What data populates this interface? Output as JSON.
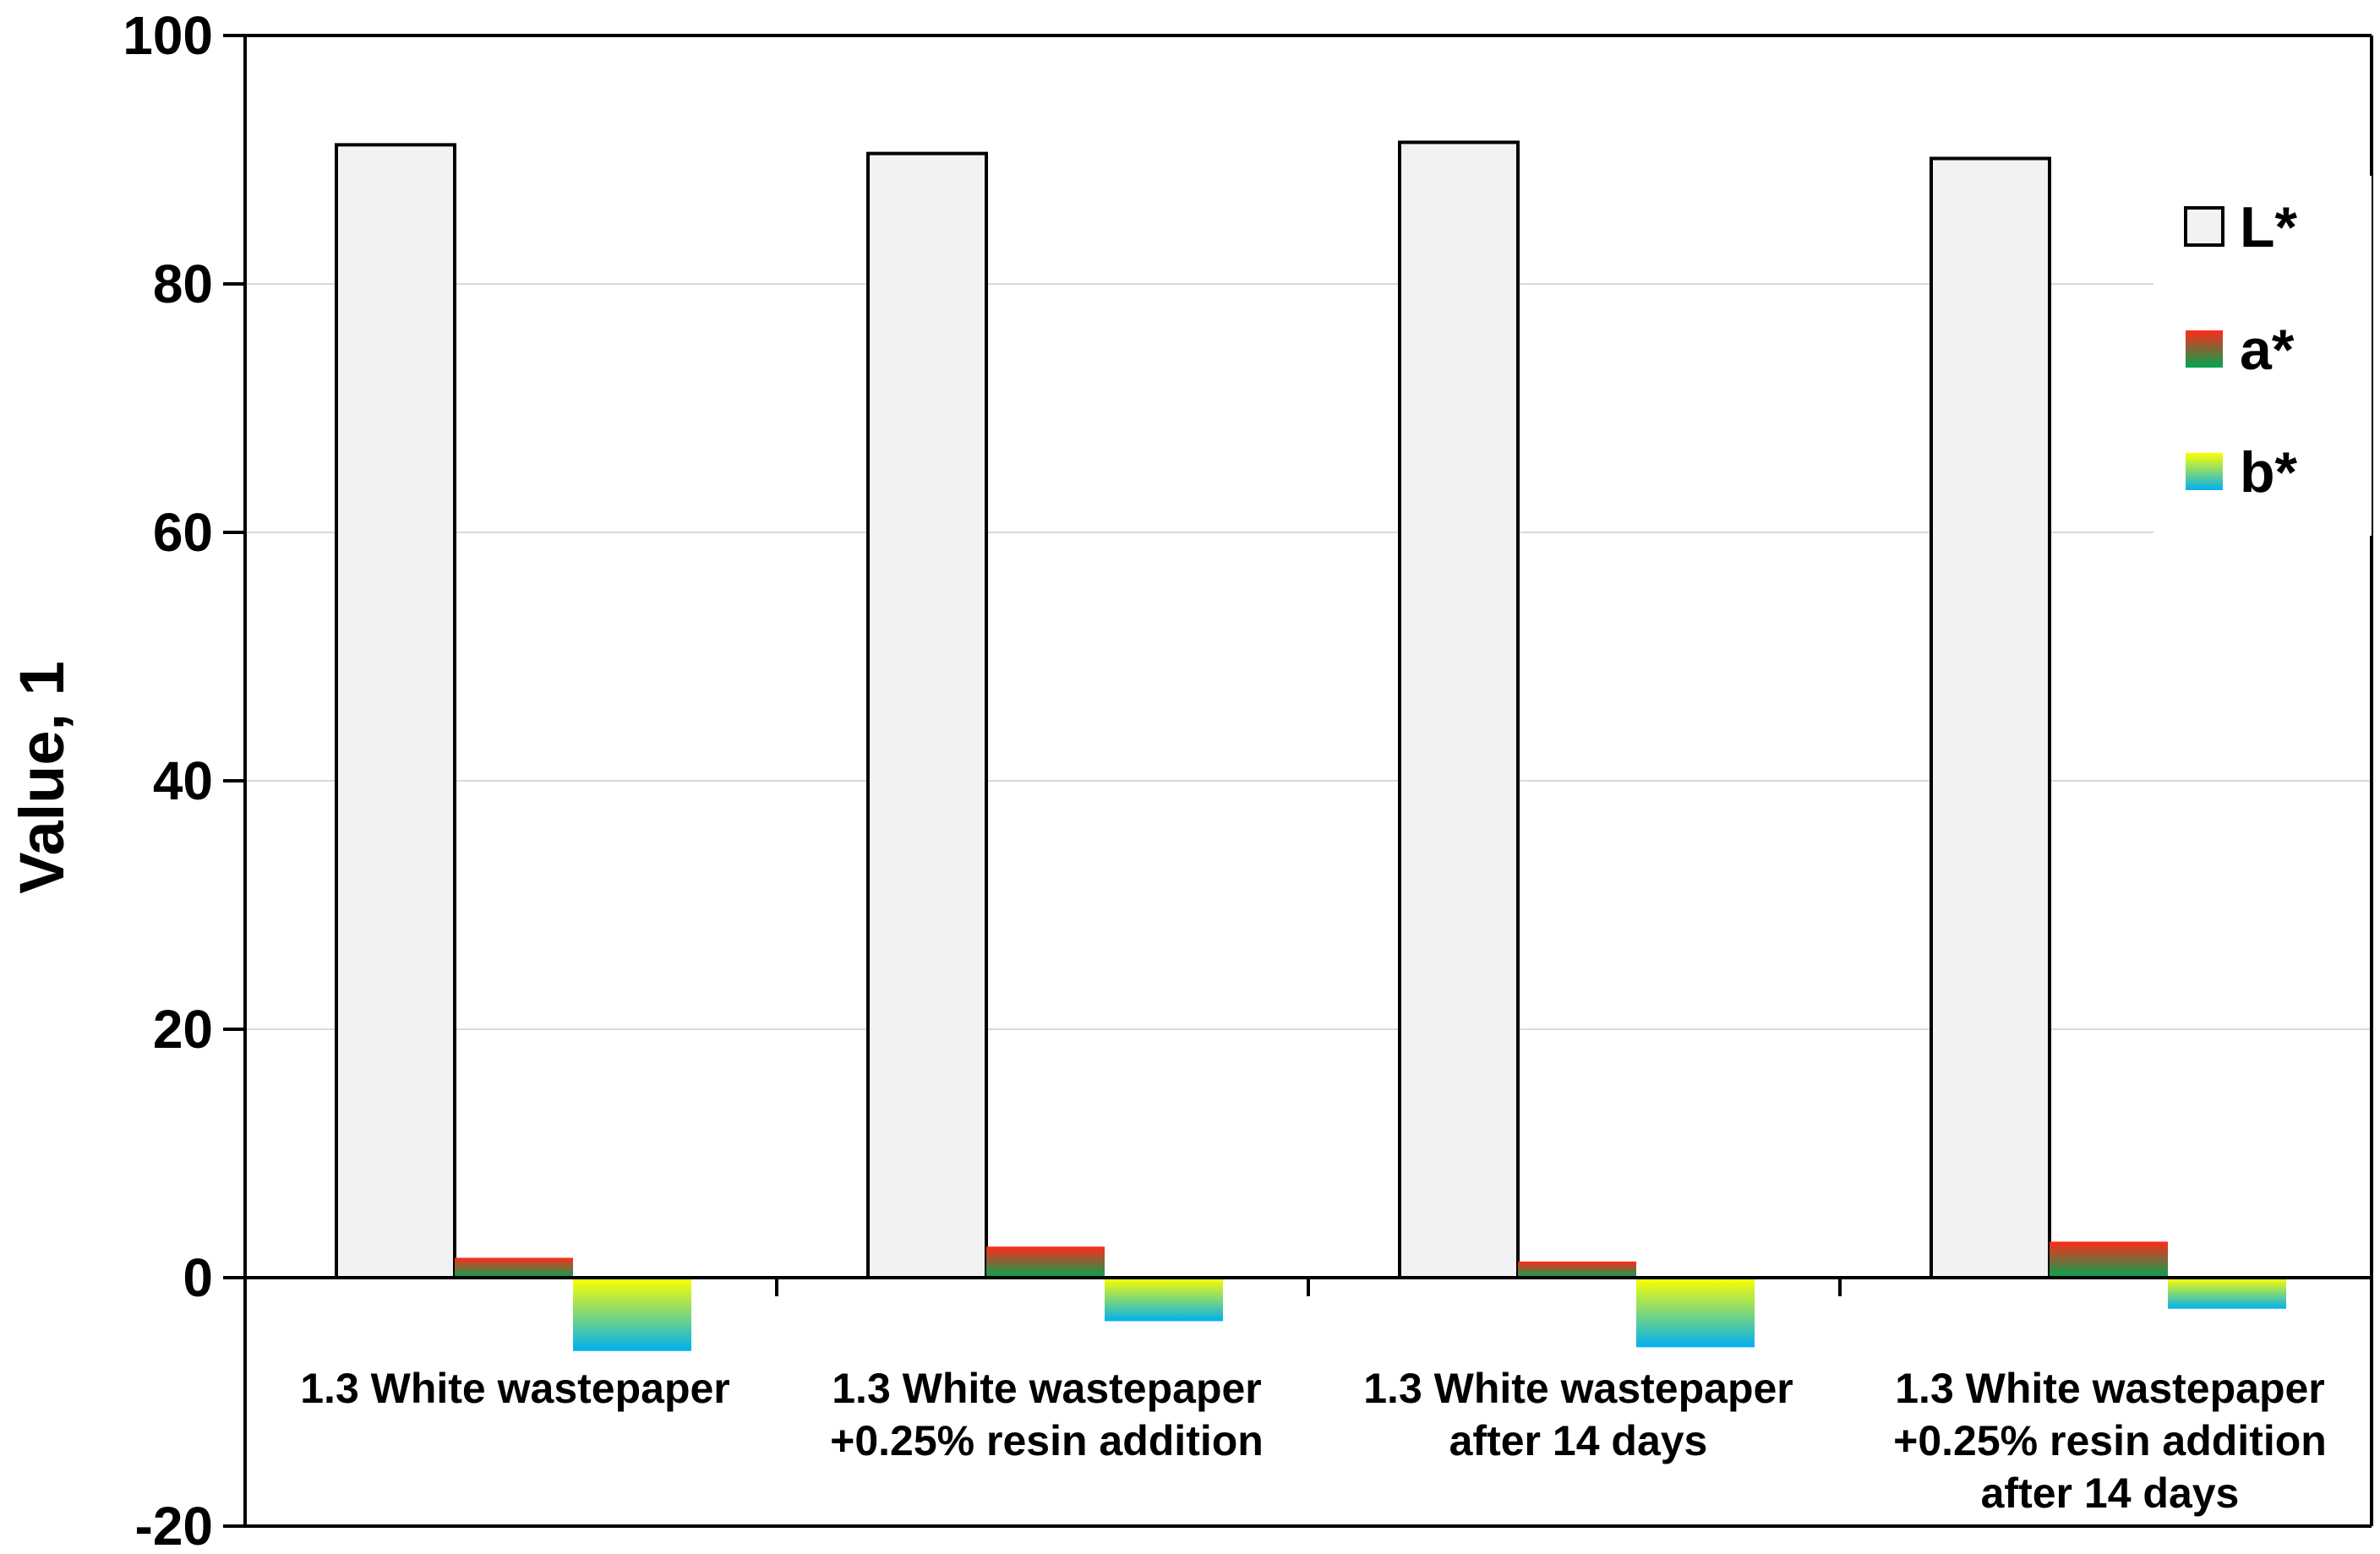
{
  "chart_data": {
    "type": "bar",
    "ylabel": "Value, 1",
    "ylim": [
      -20,
      100
    ],
    "yticks": [
      -20,
      0,
      20,
      40,
      60,
      80,
      100
    ],
    "grid": true,
    "legend_position": "top-right",
    "categories": [
      [
        "1.3 White wastepaper"
      ],
      [
        "1.3 White wastepaper",
        "+0.25% resin addition"
      ],
      [
        "1.3 White wastepaper",
        "after 14 days"
      ],
      [
        "1.3 White wastepaper",
        "+0.25% resin addition",
        "after 14 days"
      ]
    ],
    "series": [
      {
        "name": "L*",
        "values": [
          91.2,
          90.5,
          91.4,
          90.1
        ],
        "fill": "#f2f2f2",
        "stroke": "#000000"
      },
      {
        "name": "a*",
        "values": [
          1.6,
          2.5,
          1.3,
          2.9
        ],
        "gradient": [
          "#ff2a1a",
          "#00a651"
        ]
      },
      {
        "name": "b*",
        "values": [
          -5.9,
          -3.5,
          -5.6,
          -2.5
        ],
        "gradient": [
          "#ffff00",
          "#00b0f0"
        ]
      }
    ]
  }
}
